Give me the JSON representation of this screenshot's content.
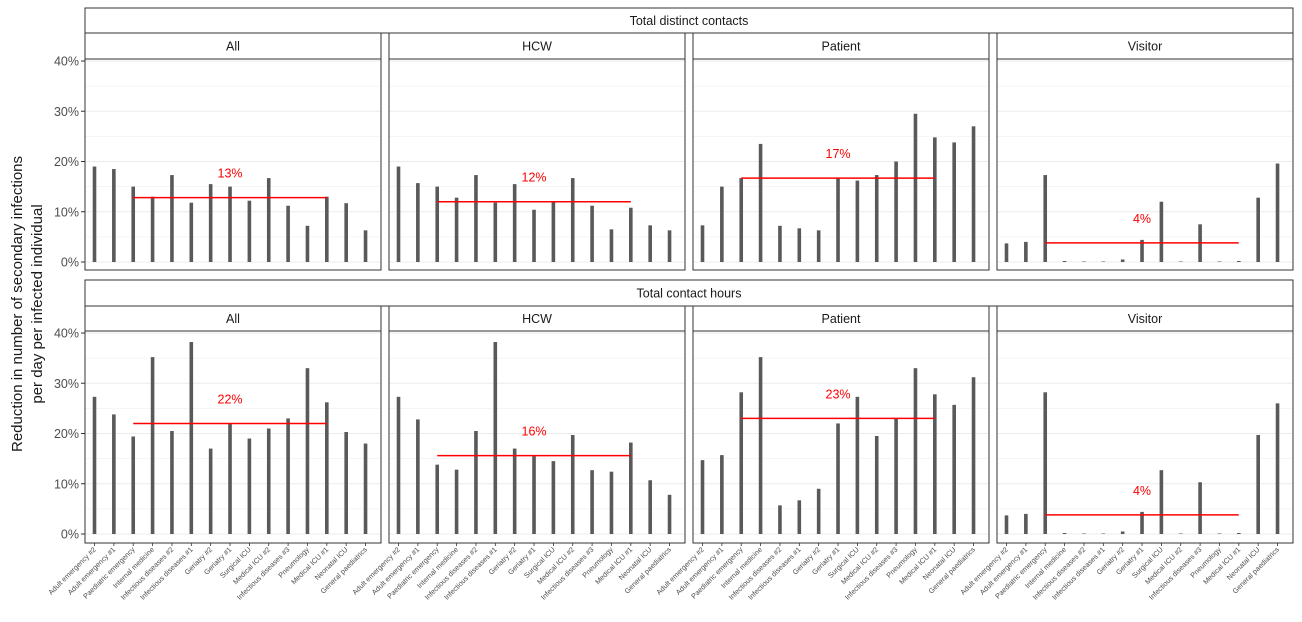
{
  "chart_data": {
    "type": "bar",
    "ylabel": "Reduction in number of secondary infections per day per infected individual",
    "ylabel_lines": [
      "Reduction in number of secondary infections",
      "per day per infected individual"
    ],
    "ylim": [
      0,
      0.4
    ],
    "yticks": [
      0,
      0.1,
      0.2,
      0.3,
      0.4
    ],
    "ytick_labels": [
      "0%",
      "10%",
      "20%",
      "30%",
      "40%"
    ],
    "grid": true,
    "colors": {
      "bar": "#595959",
      "mean_line": "#ff0000",
      "strip_bg": "#ffffff",
      "grid": "#ebebeb"
    },
    "categories": [
      "Adult emergency #2",
      "Adult emergency #1",
      "Paediatric emergency",
      "Internal medicine",
      "Infectious diseases #2",
      "Infectious diseases #1",
      "Geriatry #2",
      "Geriatry #1",
      "Surgical ICU",
      "Medical ICU #2",
      "Infectious diseases #3",
      "Pneumology",
      "Medical ICU #1",
      "Neonatal ICU",
      "General paediatrics"
    ],
    "panels": [
      {
        "row": "Total distinct contacts",
        "col": "All",
        "mean": 0.128,
        "mean_label": "13%",
        "mean_range": [
          2,
          12
        ],
        "values": [
          0.19,
          0.185,
          0.15,
          0.13,
          0.173,
          0.118,
          0.155,
          0.15,
          0.122,
          0.167,
          0.112,
          0.072,
          0.13,
          0.117,
          0.063
        ]
      },
      {
        "row": "Total distinct contacts",
        "col": "HCW",
        "mean": 0.12,
        "mean_label": "12%",
        "mean_range": [
          2,
          12
        ],
        "values": [
          0.19,
          0.157,
          0.15,
          0.128,
          0.173,
          0.118,
          0.155,
          0.104,
          0.12,
          0.167,
          0.112,
          0.065,
          0.108,
          0.073,
          0.063
        ]
      },
      {
        "row": "Total distinct contacts",
        "col": "Patient",
        "mean": 0.167,
        "mean_label": "17%",
        "mean_range": [
          2,
          12
        ],
        "values": [
          0.073,
          0.15,
          0.167,
          0.235,
          0.072,
          0.067,
          0.063,
          0.167,
          0.162,
          0.173,
          0.2,
          0.295,
          0.248,
          0.238,
          0.27
        ]
      },
      {
        "row": "Total distinct contacts",
        "col": "Visitor",
        "mean": 0.038,
        "mean_label": "4%",
        "mean_range": [
          2,
          12
        ],
        "values": [
          0.037,
          0.04,
          0.173,
          0.002,
          0.001,
          0.001,
          0.005,
          0.044,
          0.12,
          0.001,
          0.075,
          0.001,
          0.002,
          0.128,
          0.196
        ]
      },
      {
        "row": "Total contact hours",
        "col": "All",
        "mean": 0.22,
        "mean_label": "22%",
        "mean_range": [
          2,
          12
        ],
        "values": [
          0.273,
          0.238,
          0.194,
          0.352,
          0.205,
          0.382,
          0.17,
          0.22,
          0.19,
          0.21,
          0.23,
          0.33,
          0.262,
          0.203,
          0.18
        ]
      },
      {
        "row": "Total contact hours",
        "col": "HCW",
        "mean": 0.156,
        "mean_label": "16%",
        "mean_range": [
          2,
          12
        ],
        "values": [
          0.273,
          0.228,
          0.138,
          0.128,
          0.205,
          0.382,
          0.17,
          0.155,
          0.145,
          0.197,
          0.127,
          0.124,
          0.182,
          0.107,
          0.078
        ]
      },
      {
        "row": "Total contact hours",
        "col": "Patient",
        "mean": 0.23,
        "mean_label": "23%",
        "mean_range": [
          2,
          12
        ],
        "values": [
          0.147,
          0.157,
          0.282,
          0.352,
          0.057,
          0.067,
          0.09,
          0.22,
          0.273,
          0.195,
          0.23,
          0.33,
          0.278,
          0.257,
          0.312
        ]
      },
      {
        "row": "Total contact hours",
        "col": "Visitor",
        "mean": 0.038,
        "mean_label": "4%",
        "mean_range": [
          2,
          12
        ],
        "values": [
          0.037,
          0.04,
          0.282,
          0.002,
          0.001,
          0.001,
          0.005,
          0.044,
          0.127,
          0.001,
          0.103,
          0.001,
          0.002,
          0.197,
          0.26
        ]
      }
    ],
    "row_labels": [
      "Total distinct contacts",
      "Total contact hours"
    ],
    "col_labels": [
      "All",
      "HCW",
      "Patient",
      "Visitor"
    ]
  }
}
